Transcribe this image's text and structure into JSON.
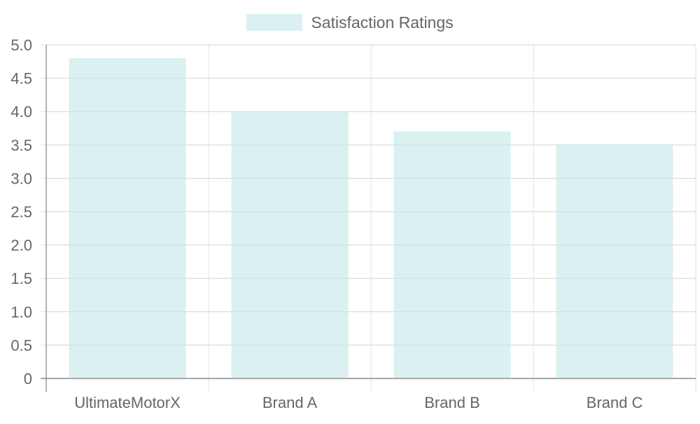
{
  "colors": {
    "bar_fill": "#daf0f1",
    "grid": "#e1e1e1",
    "axis": "#9a9a9a",
    "tick_text": "#666666"
  },
  "legend": {
    "label": "Satisfaction Ratings",
    "placement": "top-center"
  },
  "chart_data": {
    "type": "bar",
    "categories": [
      "UltimateMotorX",
      "Brand A",
      "Brand B",
      "Brand C"
    ],
    "series": [
      {
        "name": "Satisfaction Ratings",
        "values": [
          4.8,
          4.0,
          3.7,
          3.5
        ]
      }
    ],
    "ylim": [
      0,
      5
    ],
    "yticks": [
      "0",
      "0.5",
      "1.0",
      "1.5",
      "2.0",
      "2.5",
      "3.0",
      "3.5",
      "4.0",
      "4.5",
      "5.0"
    ],
    "grid": true,
    "legend_position": "top"
  }
}
